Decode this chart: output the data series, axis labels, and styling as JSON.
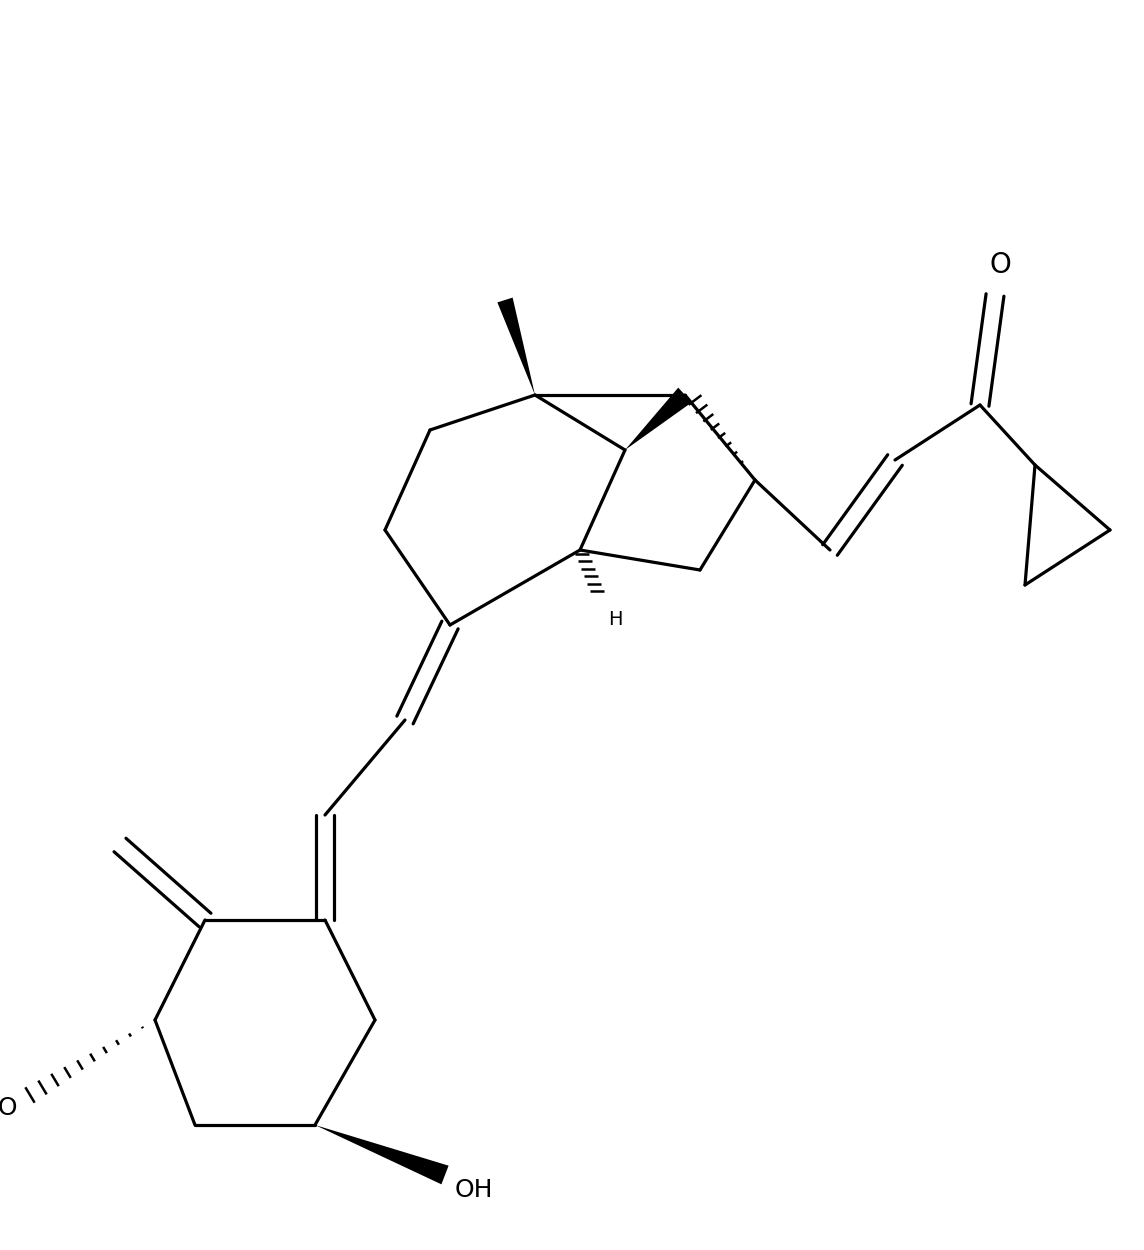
{
  "background_color": "#ffffff",
  "line_color": "#000000",
  "line_width": 2.3,
  "figsize": [
    11.44,
    12.5
  ],
  "dpi": 100,
  "xlim": [
    0.0,
    11.44
  ],
  "ylim": [
    0.0,
    12.5
  ]
}
